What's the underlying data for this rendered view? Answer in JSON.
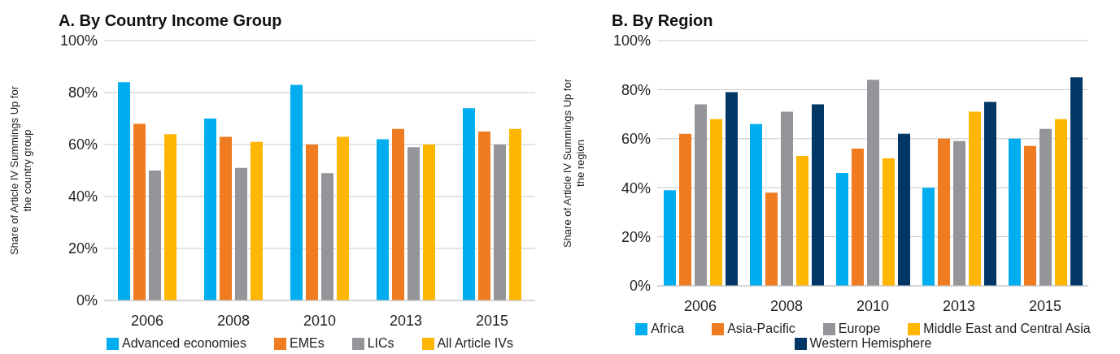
{
  "chart_data": [
    {
      "type": "bar",
      "title": "A. By Country Income Group",
      "ylabel": "Share of Article IV Summings Up for the country group",
      "categories": [
        "2006",
        "2008",
        "2010",
        "2013",
        "2015"
      ],
      "series": [
        {
          "name": "Advanced economies",
          "color": "#00aeef",
          "values": [
            84,
            70,
            83,
            62,
            74
          ]
        },
        {
          "name": "EMEs",
          "color": "#f07c22",
          "values": [
            68,
            63,
            60,
            66,
            65
          ]
        },
        {
          "name": "LICs",
          "color": "#939598",
          "values": [
            50,
            51,
            49,
            59,
            60
          ]
        },
        {
          "name": "All Article IVs",
          "color": "#ffb600",
          "values": [
            64,
            61,
            63,
            60,
            66
          ]
        }
      ],
      "ylim": [
        0,
        100
      ],
      "yticks": [
        {
          "value": 0,
          "label": "0%"
        },
        {
          "value": 20,
          "label": "20%"
        },
        {
          "value": 40,
          "label": "40%"
        },
        {
          "value": 60,
          "label": "60%"
        },
        {
          "value": 80,
          "label": "80%"
        },
        {
          "value": 100,
          "label": "100%"
        }
      ],
      "grid": "y",
      "legend": "bottom"
    },
    {
      "type": "bar",
      "title": "B. By Region",
      "ylabel": "Share of Article IV Summings Up for the region",
      "categories": [
        "2006",
        "2008",
        "2010",
        "2013",
        "2015"
      ],
      "series": [
        {
          "name": "Africa",
          "color": "#00aeef",
          "values": [
            39,
            66,
            46,
            40,
            60
          ]
        },
        {
          "name": "Asia-Pacific",
          "color": "#f07c22",
          "values": [
            62,
            38,
            56,
            60,
            57
          ]
        },
        {
          "name": "Europe",
          "color": "#939598",
          "values": [
            74,
            71,
            84,
            59,
            64
          ]
        },
        {
          "name": "Middle East and Central Asia",
          "color": "#ffb600",
          "values": [
            68,
            53,
            52,
            71,
            68
          ]
        },
        {
          "name": "Western Hemisphere",
          "color": "#003764",
          "values": [
            79,
            74,
            62,
            75,
            85
          ]
        }
      ],
      "ylim": [
        0,
        100
      ],
      "yticks": [
        {
          "value": 0,
          "label": "0%"
        },
        {
          "value": 20,
          "label": "20%"
        },
        {
          "value": 40,
          "label": "40%"
        },
        {
          "value": 60,
          "label": "60%"
        },
        {
          "value": 80,
          "label": "80%"
        },
        {
          "value": 100,
          "label": "100%"
        }
      ],
      "grid": "y",
      "legend": "bottom"
    }
  ]
}
